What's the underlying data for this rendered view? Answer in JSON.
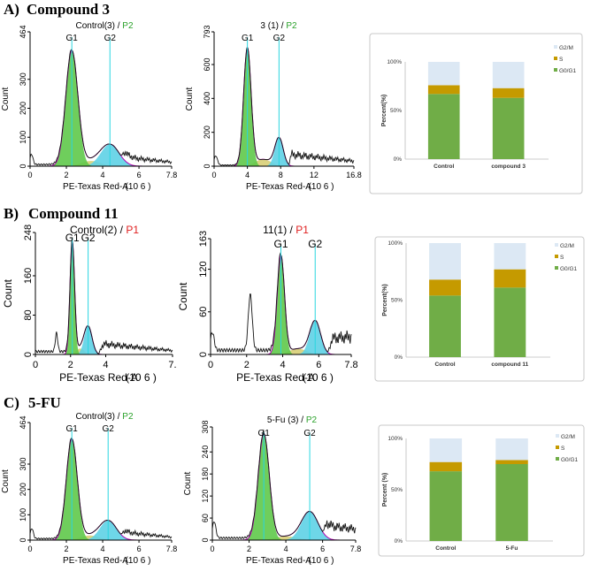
{
  "figure": {
    "sections": [
      {
        "label": "A)",
        "title": "Compound 3"
      },
      {
        "label": "B)",
        "title": "Compound 11"
      },
      {
        "label": "C)",
        "title": "5-FU"
      }
    ]
  },
  "colors": {
    "g1_fill": "#5fc94a",
    "s_fill": "#d8cf77",
    "g2_fill": "#5ed2e6",
    "fit_line": "#b000b0",
    "marker_line": "#29d6e0",
    "curve": "#111111",
    "gate_green": "#2aa12a",
    "gate_red": "#e02020",
    "bar_g0g1": "#70ad47",
    "bar_s": "#c59a00",
    "bar_g2m": "#dce8f4"
  },
  "chart_data": [
    {
      "type": "histogram",
      "id": "A1",
      "title_prefix": "Control(3) / ",
      "gate": "P2",
      "gate_color": "green",
      "xlabel": "PE-Texas Red-A",
      "x_unit": "(10 6 )",
      "ylabel": "Count",
      "xlim": [
        0,
        7.8
      ],
      "xticks": [
        "0",
        "2",
        "4",
        "6",
        "7.8"
      ],
      "ylim": [
        0,
        464
      ],
      "yticks": [
        "0",
        "100",
        "200",
        "300",
        "464"
      ],
      "markers": [
        {
          "label": "G1",
          "x": 2.3
        },
        {
          "label": "G2",
          "x": 4.4
        }
      ],
      "peaks": {
        "g1": {
          "x": 2.3,
          "h": 400,
          "w": 0.33
        },
        "g2": {
          "x": 4.4,
          "h": 76,
          "w": 0.5
        },
        "s": {
          "h": 18
        },
        "debris": [
          {
            "x": 0.08,
            "h": 35,
            "w": 0.08
          }
        ],
        "tail": {
          "start": 5.0,
          "end": 7.8,
          "h0": 32,
          "h1": 14
        }
      }
    },
    {
      "type": "histogram",
      "id": "A2",
      "title_prefix": "3 (1) / ",
      "gate": "P2",
      "gate_color": "green",
      "xlabel": "PE-Texas Red-A",
      "x_unit": "(10 6 )",
      "ylabel": "Count",
      "xlim": [
        0,
        16.8
      ],
      "xticks": [
        "0",
        "4",
        "8",
        "12",
        "16.8"
      ],
      "ylim": [
        0,
        793
      ],
      "yticks": [
        "0",
        "200",
        "400",
        "600",
        "793"
      ],
      "markers": [
        {
          "label": "G1",
          "x": 4.0
        },
        {
          "label": "G2",
          "x": 7.8
        }
      ],
      "peaks": {
        "g1": {
          "x": 4.0,
          "h": 700,
          "w": 0.45
        },
        "g2": {
          "x": 7.8,
          "h": 170,
          "w": 0.5
        },
        "s": {
          "h": 40
        },
        "debris": [
          {
            "x": 0.2,
            "h": 55,
            "w": 0.2
          }
        ],
        "tail": {
          "start": 9.0,
          "end": 16.8,
          "h0": 70,
          "h1": 30
        }
      }
    },
    {
      "type": "stacked_bar",
      "id": "A3",
      "categories": [
        "Control",
        "compound 3"
      ],
      "yticks": [
        "0%",
        "50%",
        "100%"
      ],
      "ylabel": "Percent(%)",
      "series": [
        {
          "name": "G0/G1",
          "values": [
            67,
            63
          ]
        },
        {
          "name": "S",
          "values": [
            9,
            10
          ]
        },
        {
          "name": "G2/M",
          "values": [
            24,
            27
          ]
        }
      ],
      "legend": [
        "G2/M",
        "S",
        "G0/G1"
      ]
    },
    {
      "type": "histogram",
      "id": "B1",
      "title_prefix": "Control(2) / ",
      "gate": "P1",
      "gate_color": "red",
      "xlabel": "PE-Texas Red-A",
      "x_unit": "(10 6 )",
      "ylabel": "Count",
      "xlim": [
        0,
        7.8
      ],
      "xticks": [
        "0",
        "2",
        "4",
        "7."
      ],
      "ylim": [
        0,
        248
      ],
      "yticks": [
        "0",
        "80",
        "160",
        "248"
      ],
      "markers": [
        {
          "label": "G1",
          "x": 2.1
        },
        {
          "label": "G2",
          "x": 3.0
        }
      ],
      "peaks": {
        "g1": {
          "x": 2.1,
          "h": 230,
          "w": 0.13
        },
        "g2": {
          "x": 3.0,
          "h": 58,
          "w": 0.22
        },
        "s": {
          "h": 12
        },
        "debris": [
          {
            "x": 1.2,
            "h": 38,
            "w": 0.07
          }
        ],
        "tail": {
          "start": 3.6,
          "end": 7.8,
          "h0": 22,
          "h1": 8
        }
      }
    },
    {
      "type": "histogram",
      "id": "B2",
      "title_prefix": "11(1) / ",
      "gate": "P1",
      "gate_color": "red",
      "xlabel": "PE-Texas Red-A",
      "x_unit": "(10 6 )",
      "ylabel": "Count",
      "xlim": [
        0,
        7.8
      ],
      "xticks": [
        "0",
        "2",
        "4",
        "6",
        "7.8"
      ],
      "ylim": [
        0,
        163
      ],
      "yticks": [
        "0",
        "60",
        "120",
        "163"
      ],
      "markers": [
        {
          "label": "G1",
          "x": 3.9
        },
        {
          "label": "G2",
          "x": 5.8
        }
      ],
      "peaks": {
        "g1": {
          "x": 3.9,
          "h": 140,
          "w": 0.2
        },
        "g2": {
          "x": 5.8,
          "h": 48,
          "w": 0.3
        },
        "s": {
          "h": 8
        },
        "debris": [
          {
            "x": 2.2,
            "h": 78,
            "w": 0.11
          },
          {
            "x": 0.1,
            "h": 25,
            "w": 0.1
          }
        ],
        "tail": {
          "start": 6.5,
          "end": 7.8,
          "h0": 22,
          "h1": 25
        }
      }
    },
    {
      "type": "stacked_bar",
      "id": "B3",
      "categories": [
        "Control",
        "compound 11"
      ],
      "yticks": [
        "0%",
        "50%",
        "100%"
      ],
      "ylabel": "Percent(%)",
      "series": [
        {
          "name": "G0/G1",
          "values": [
            54,
            61
          ]
        },
        {
          "name": "S",
          "values": [
            14,
            16
          ]
        },
        {
          "name": "G2/M",
          "values": [
            32,
            23
          ]
        }
      ],
      "legend": [
        "G2/M",
        "S",
        "G0/G1"
      ]
    },
    {
      "type": "histogram",
      "id": "C1",
      "title_prefix": "Control(3) / ",
      "gate": "P2",
      "gate_color": "green",
      "xlabel": "PE-Texas Red-A",
      "x_unit": "(10 6 )",
      "ylabel": "Count",
      "xlim": [
        0,
        7.8
      ],
      "xticks": [
        "0",
        "2",
        "4",
        "6",
        "7.8"
      ],
      "ylim": [
        0,
        464
      ],
      "yticks": [
        "0",
        "100",
        "200",
        "300",
        "464"
      ],
      "markers": [
        {
          "label": "G1",
          "x": 2.3
        },
        {
          "label": "G2",
          "x": 4.3
        }
      ],
      "peaks": {
        "g1": {
          "x": 2.3,
          "h": 400,
          "w": 0.3
        },
        "g2": {
          "x": 4.3,
          "h": 78,
          "w": 0.45
        },
        "s": {
          "h": 18
        },
        "debris": [
          {
            "x": 0.1,
            "h": 40,
            "w": 0.08
          }
        ],
        "tail": {
          "start": 5.0,
          "end": 7.8,
          "h0": 32,
          "h1": 12
        }
      }
    },
    {
      "type": "histogram",
      "id": "C2",
      "title_prefix": "5-Fu (3) / ",
      "gate": "P2",
      "gate_color": "green",
      "xlabel": "PE-Texas Red-A",
      "x_unit": "(10 6 )",
      "ylabel": "Count",
      "xlim": [
        0,
        7.8
      ],
      "xticks": [
        "0",
        "2",
        "4",
        "6",
        "7.8"
      ],
      "ylim": [
        0,
        308
      ],
      "yticks": [
        "0",
        "60",
        "120",
        "180",
        "240",
        "308"
      ],
      "markers": [
        {
          "label": "G1",
          "x": 2.8
        },
        {
          "label": "G2",
          "x": 5.3
        }
      ],
      "peaks": {
        "g1": {
          "x": 2.8,
          "h": 290,
          "w": 0.3
        },
        "g2": {
          "x": 5.3,
          "h": 78,
          "w": 0.45
        },
        "s": {
          "h": 10
        },
        "debris": [
          {
            "x": 0.1,
            "h": 45,
            "w": 0.09
          }
        ],
        "tail": {
          "start": 6.0,
          "end": 7.8,
          "h0": 40,
          "h1": 30
        }
      }
    },
    {
      "type": "stacked_bar",
      "id": "C3",
      "categories": [
        "Control",
        "5-Fu"
      ],
      "yticks": [
        "0%",
        "50%",
        "100%"
      ],
      "ylabel": "Percent (%)",
      "series": [
        {
          "name": "G0/G1",
          "values": [
            68,
            75
          ]
        },
        {
          "name": "S",
          "values": [
            9,
            4
          ]
        },
        {
          "name": "G2/M",
          "values": [
            23,
            21
          ]
        }
      ],
      "legend": [
        "G2/M",
        "S",
        "G0/G1"
      ]
    }
  ]
}
